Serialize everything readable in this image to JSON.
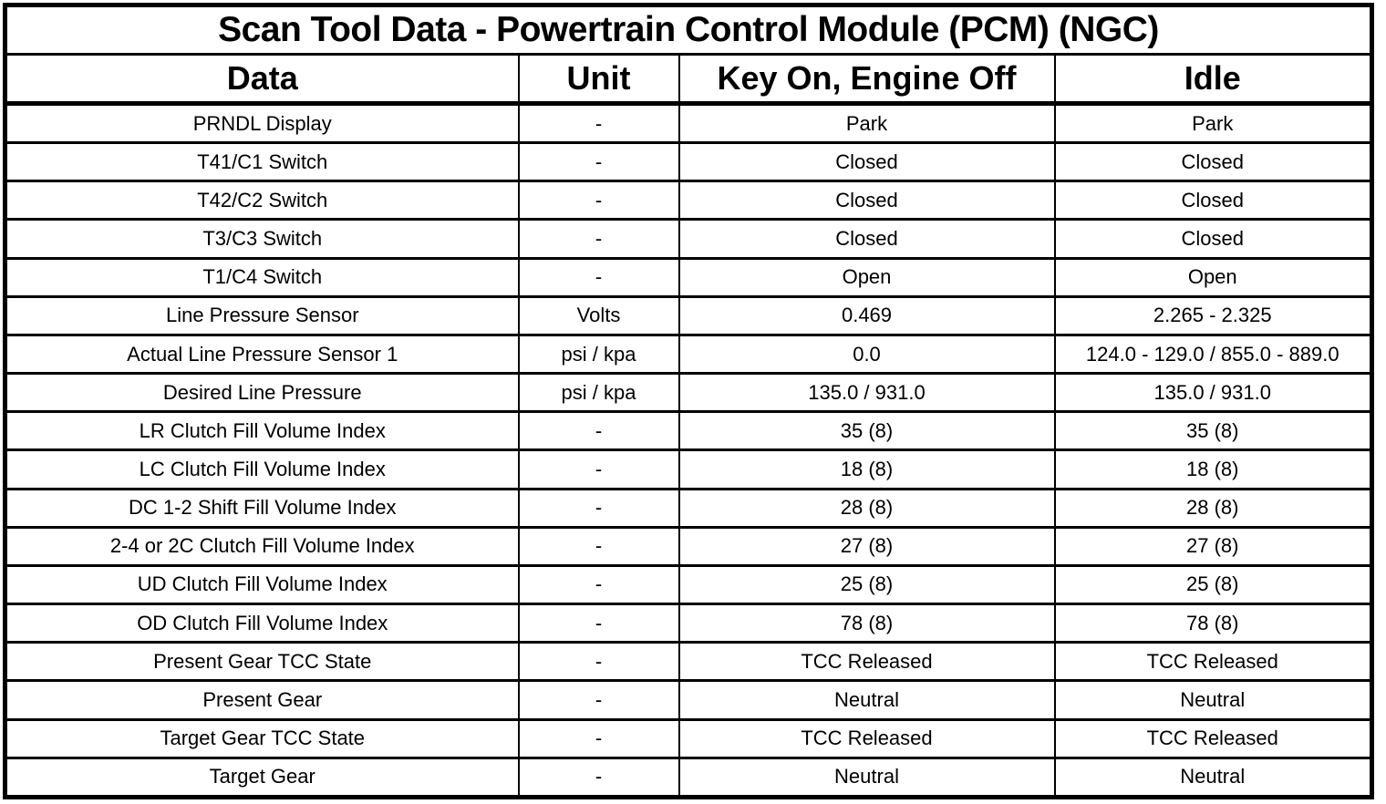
{
  "table": {
    "title": "Scan Tool Data - Powertrain Control Module (PCM) (NGC)",
    "columns": [
      "Data",
      "Unit",
      "Key On, Engine Off",
      "Idle"
    ],
    "rows": [
      [
        "PRNDL Display",
        "-",
        "Park",
        "Park"
      ],
      [
        "T41/C1 Switch",
        "-",
        "Closed",
        "Closed"
      ],
      [
        "T42/C2 Switch",
        "-",
        "Closed",
        "Closed"
      ],
      [
        "T3/C3 Switch",
        "-",
        "Closed",
        "Closed"
      ],
      [
        "T1/C4 Switch",
        "-",
        "Open",
        "Open"
      ],
      [
        "Line Pressure Sensor",
        "Volts",
        "0.469",
        "2.265 - 2.325"
      ],
      [
        "Actual Line Pressure Sensor 1",
        "psi / kpa",
        "0.0",
        "124.0 - 129.0 / 855.0 - 889.0"
      ],
      [
        "Desired Line Pressure",
        "psi / kpa",
        "135.0 / 931.0",
        "135.0 / 931.0"
      ],
      [
        "LR Clutch Fill Volume Index",
        "-",
        "35 (8)",
        "35 (8)"
      ],
      [
        "LC Clutch Fill Volume Index",
        "-",
        "18 (8)",
        "18 (8)"
      ],
      [
        "DC 1-2 Shift Fill Volume Index",
        "-",
        "28 (8)",
        "28 (8)"
      ],
      [
        "2-4 or 2C Clutch Fill Volume Index",
        "-",
        "27 (8)",
        "27 (8)"
      ],
      [
        "UD Clutch Fill Volume Index",
        "-",
        "25 (8)",
        "25 (8)"
      ],
      [
        "OD Clutch Fill Volume Index",
        "-",
        "78 (8)",
        "78 (8)"
      ],
      [
        "Present Gear TCC State",
        "-",
        "TCC Released",
        "TCC Released"
      ],
      [
        "Present Gear",
        "-",
        "Neutral",
        "Neutral"
      ],
      [
        "Target Gear TCC State",
        "-",
        "TCC Released",
        "TCC Released"
      ],
      [
        "Target Gear",
        "-",
        "Neutral",
        "Neutral"
      ]
    ],
    "colors": {
      "border": "#000000",
      "background": "#ffffff",
      "text": "#000000"
    }
  }
}
